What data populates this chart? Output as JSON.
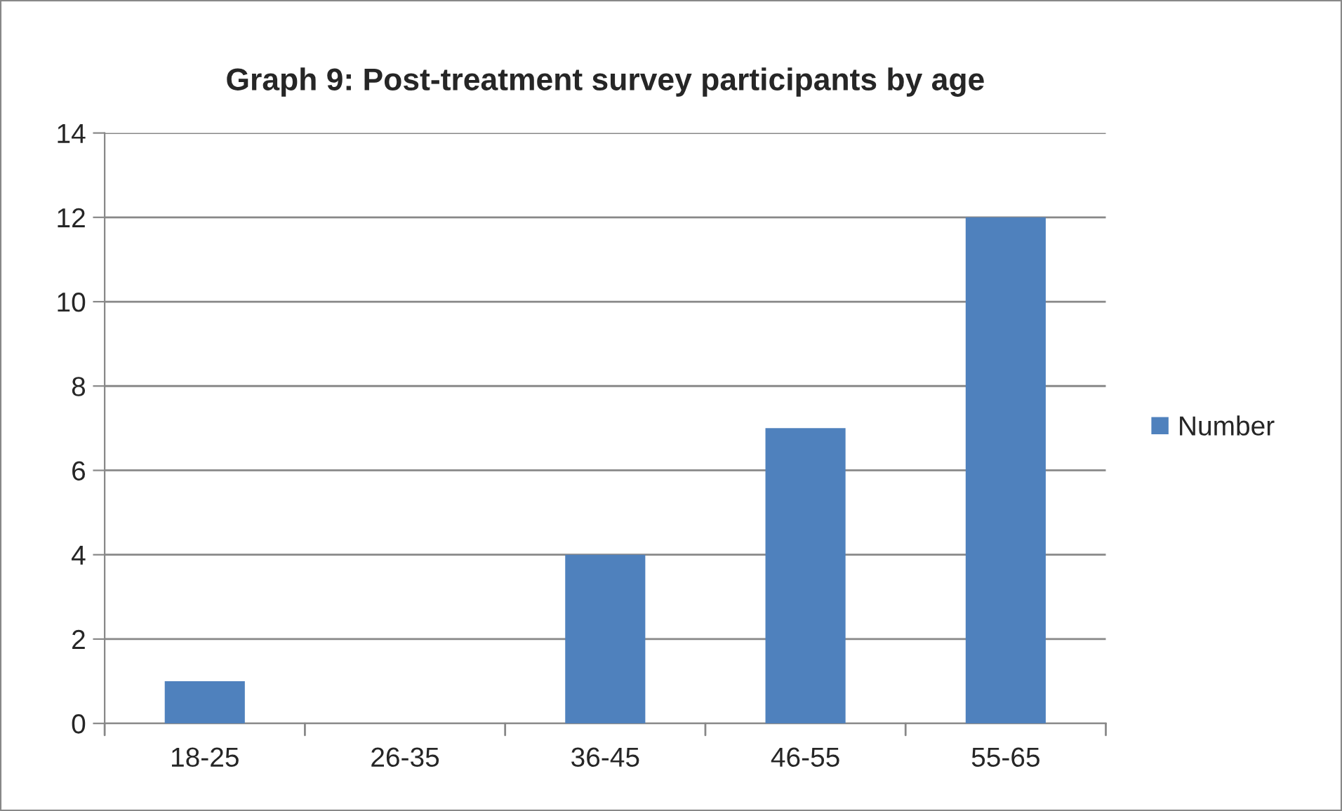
{
  "chart_data": {
    "type": "bar",
    "title": "Graph 9: Post-treatment survey participants by age",
    "categories": [
      "18-25",
      "26-35",
      "36-45",
      "46-55",
      "55-65"
    ],
    "series": [
      {
        "name": "Number",
        "color": "#4f81bd",
        "values": [
          1,
          0,
          4,
          7,
          12
        ]
      }
    ],
    "ylim": [
      0,
      14
    ],
    "yticks": [
      0,
      2,
      4,
      6,
      8,
      10,
      12,
      14
    ],
    "grid": "y",
    "legend": "right"
  }
}
